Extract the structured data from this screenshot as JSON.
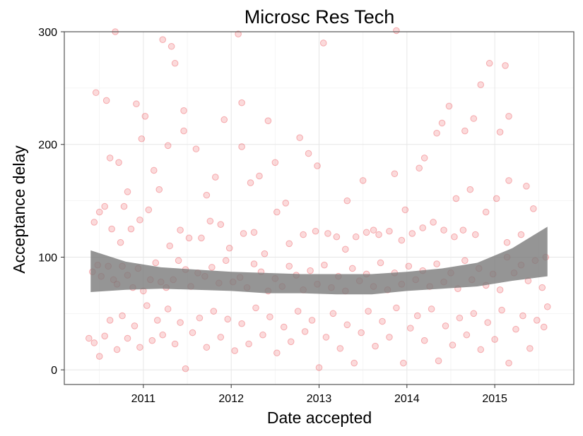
{
  "chart_data": {
    "type": "scatter",
    "title": "Microsc Res Tech",
    "xlabel": "Date accepted",
    "ylabel": "Acceptance delay",
    "xlim": [
      2010.1,
      2015.9
    ],
    "ylim": [
      -13,
      300
    ],
    "x_ticks": [
      2011,
      2012,
      2013,
      2014,
      2015
    ],
    "y_ticks": [
      0,
      100,
      200,
      300
    ],
    "grid": true,
    "point_color": "#e8303a",
    "ribbon_color": "#7a7a7a",
    "smooth_band": {
      "x": [
        2010.4,
        2010.8,
        2011.2,
        2011.6,
        2012.0,
        2012.4,
        2012.8,
        2013.2,
        2013.6,
        2014.0,
        2014.4,
        2014.8,
        2015.2,
        2015.6
      ],
      "lower": [
        69,
        71,
        72,
        71,
        70,
        68,
        68,
        67,
        67,
        70,
        72,
        74,
        79,
        83
      ],
      "upper": [
        106,
        96,
        91,
        89,
        87,
        86,
        85,
        85,
        85,
        87,
        90,
        95,
        108,
        127
      ]
    },
    "series": [
      {
        "points": [
          [
            2010.46,
            246
          ],
          [
            2010.58,
            239
          ],
          [
            2010.62,
            188
          ],
          [
            2010.68,
            300
          ],
          [
            2010.72,
            184
          ],
          [
            2010.78,
            145
          ],
          [
            2010.82,
            158
          ],
          [
            2010.92,
            236
          ],
          [
            2010.98,
            205
          ],
          [
            2011.02,
            225
          ],
          [
            2011.12,
            177
          ],
          [
            2011.22,
            293
          ],
          [
            2011.32,
            287
          ],
          [
            2011.36,
            272
          ],
          [
            2011.28,
            199
          ],
          [
            2011.46,
            230
          ],
          [
            2011.46,
            212
          ],
          [
            2011.6,
            196
          ],
          [
            2011.72,
            155
          ],
          [
            2011.82,
            171
          ],
          [
            2011.92,
            222
          ],
          [
            2012.08,
            298
          ],
          [
            2012.12,
            237
          ],
          [
            2012.12,
            198
          ],
          [
            2012.22,
            166
          ],
          [
            2012.32,
            172
          ],
          [
            2012.42,
            221
          ],
          [
            2012.5,
            184
          ],
          [
            2012.62,
            148
          ],
          [
            2012.78,
            206
          ],
          [
            2012.88,
            192
          ],
          [
            2012.98,
            181
          ],
          [
            2013.05,
            290
          ],
          [
            2013.32,
            150
          ],
          [
            2013.5,
            168
          ],
          [
            2013.62,
            124
          ],
          [
            2013.88,
            301
          ],
          [
            2013.86,
            174
          ],
          [
            2013.98,
            142
          ],
          [
            2014.14,
            179
          ],
          [
            2014.2,
            188
          ],
          [
            2014.34,
            210
          ],
          [
            2014.4,
            219
          ],
          [
            2014.48,
            234
          ],
          [
            2014.56,
            152
          ],
          [
            2014.66,
            212
          ],
          [
            2014.72,
            160
          ],
          [
            2014.76,
            223
          ],
          [
            2014.84,
            253
          ],
          [
            2014.94,
            272
          ],
          [
            2015.06,
            211
          ],
          [
            2015.12,
            270
          ],
          [
            2015.16,
            225
          ],
          [
            2015.16,
            168
          ],
          [
            2015.3,
            120
          ],
          [
            2015.36,
            163
          ],
          [
            2015.44,
            143
          ],
          [
            2010.44,
            131
          ],
          [
            2010.5,
            140
          ],
          [
            2010.56,
            145
          ],
          [
            2010.64,
            125
          ],
          [
            2010.74,
            113
          ],
          [
            2010.86,
            125
          ],
          [
            2010.96,
            133
          ],
          [
            2011.06,
            142
          ],
          [
            2011.18,
            160
          ],
          [
            2011.3,
            110
          ],
          [
            2011.42,
            124
          ],
          [
            2011.52,
            117
          ],
          [
            2011.66,
            117
          ],
          [
            2011.76,
            132
          ],
          [
            2011.88,
            129
          ],
          [
            2011.98,
            108
          ],
          [
            2012.14,
            121
          ],
          [
            2012.26,
            122
          ],
          [
            2012.38,
            103
          ],
          [
            2012.52,
            140
          ],
          [
            2012.66,
            112
          ],
          [
            2012.82,
            120
          ],
          [
            2012.96,
            123
          ],
          [
            2013.1,
            121
          ],
          [
            2013.2,
            118
          ],
          [
            2013.3,
            107
          ],
          [
            2013.42,
            118
          ],
          [
            2013.54,
            122
          ],
          [
            2013.68,
            120
          ],
          [
            2013.8,
            123
          ],
          [
            2013.94,
            115
          ],
          [
            2014.06,
            121
          ],
          [
            2014.18,
            126
          ],
          [
            2014.3,
            131
          ],
          [
            2014.42,
            124
          ],
          [
            2014.54,
            118
          ],
          [
            2014.64,
            124
          ],
          [
            2014.78,
            120
          ],
          [
            2014.9,
            140
          ],
          [
            2015.02,
            152
          ],
          [
            2015.14,
            113
          ]
        ]
      },
      {
        "points": [
          [
            2010.42,
            87
          ],
          [
            2010.48,
            93
          ],
          [
            2010.52,
            83
          ],
          [
            2010.6,
            92
          ],
          [
            2010.66,
            80
          ],
          [
            2010.7,
            76
          ],
          [
            2010.76,
            92
          ],
          [
            2010.82,
            84
          ],
          [
            2010.88,
            73
          ],
          [
            2010.94,
            90
          ],
          [
            2011.0,
            70
          ],
          [
            2011.08,
            80
          ],
          [
            2011.14,
            95
          ],
          [
            2011.2,
            78
          ],
          [
            2011.26,
            73
          ],
          [
            2011.34,
            80
          ],
          [
            2011.4,
            97
          ],
          [
            2011.48,
            89
          ],
          [
            2011.54,
            74
          ],
          [
            2011.62,
            86
          ],
          [
            2011.7,
            83
          ],
          [
            2011.78,
            91
          ],
          [
            2011.86,
            77
          ],
          [
            2011.94,
            97
          ],
          [
            2012.02,
            78
          ],
          [
            2012.1,
            82
          ],
          [
            2012.18,
            73
          ],
          [
            2012.26,
            94
          ],
          [
            2012.34,
            87
          ],
          [
            2012.42,
            70
          ],
          [
            2012.5,
            81
          ],
          [
            2012.58,
            74
          ],
          [
            2012.66,
            92
          ],
          [
            2012.74,
            84
          ],
          [
            2012.82,
            71
          ],
          [
            2012.9,
            88
          ],
          [
            2012.98,
            76
          ],
          [
            2013.06,
            93
          ],
          [
            2013.14,
            73
          ],
          [
            2013.22,
            83
          ],
          [
            2013.3,
            70
          ],
          [
            2013.38,
            90
          ],
          [
            2013.46,
            79
          ],
          [
            2013.54,
            85
          ],
          [
            2013.62,
            74
          ],
          [
            2013.7,
            95
          ],
          [
            2013.78,
            71
          ],
          [
            2013.86,
            86
          ],
          [
            2013.94,
            76
          ],
          [
            2014.02,
            92
          ],
          [
            2014.1,
            80
          ],
          [
            2014.18,
            88
          ],
          [
            2014.26,
            74
          ],
          [
            2014.34,
            94
          ],
          [
            2014.42,
            78
          ],
          [
            2014.5,
            86
          ],
          [
            2014.58,
            72
          ],
          [
            2014.66,
            97
          ],
          [
            2014.74,
            80
          ],
          [
            2014.82,
            90
          ],
          [
            2014.9,
            75
          ],
          [
            2014.98,
            85
          ],
          [
            2015.06,
            71
          ],
          [
            2015.14,
            100
          ],
          [
            2015.22,
            86
          ],
          [
            2015.3,
            93
          ],
          [
            2015.38,
            79
          ],
          [
            2015.46,
            97
          ],
          [
            2015.54,
            73
          ],
          [
            2015.58,
            100
          ]
        ]
      },
      {
        "points": [
          [
            2010.38,
            28
          ],
          [
            2010.44,
            24
          ],
          [
            2010.5,
            12
          ],
          [
            2010.56,
            30
          ],
          [
            2010.62,
            44
          ],
          [
            2010.7,
            18
          ],
          [
            2010.76,
            48
          ],
          [
            2010.82,
            28
          ],
          [
            2010.9,
            39
          ],
          [
            2010.96,
            20
          ],
          [
            2011.04,
            57
          ],
          [
            2011.1,
            26
          ],
          [
            2011.16,
            44
          ],
          [
            2011.22,
            31
          ],
          [
            2011.28,
            54
          ],
          [
            2011.36,
            23
          ],
          [
            2011.42,
            42
          ],
          [
            2011.48,
            1
          ],
          [
            2011.56,
            33
          ],
          [
            2011.64,
            46
          ],
          [
            2011.72,
            20
          ],
          [
            2011.8,
            52
          ],
          [
            2011.88,
            29
          ],
          [
            2011.96,
            45
          ],
          [
            2012.04,
            17
          ],
          [
            2012.12,
            41
          ],
          [
            2012.2,
            23
          ],
          [
            2012.28,
            55
          ],
          [
            2012.36,
            31
          ],
          [
            2012.44,
            47
          ],
          [
            2012.52,
            15
          ],
          [
            2012.6,
            38
          ],
          [
            2012.68,
            25
          ],
          [
            2012.76,
            52
          ],
          [
            2012.84,
            34
          ],
          [
            2012.92,
            44
          ],
          [
            2013.0,
            2
          ],
          [
            2013.08,
            29
          ],
          [
            2013.16,
            50
          ],
          [
            2013.24,
            19
          ],
          [
            2013.32,
            40
          ],
          [
            2013.4,
            6
          ],
          [
            2013.48,
            33
          ],
          [
            2013.56,
            52
          ],
          [
            2013.64,
            21
          ],
          [
            2013.72,
            43
          ],
          [
            2013.8,
            29
          ],
          [
            2013.88,
            55
          ],
          [
            2013.96,
            6
          ],
          [
            2014.04,
            37
          ],
          [
            2014.12,
            48
          ],
          [
            2014.2,
            26
          ],
          [
            2014.28,
            54
          ],
          [
            2014.36,
            8
          ],
          [
            2014.44,
            39
          ],
          [
            2014.52,
            22
          ],
          [
            2014.6,
            46
          ],
          [
            2014.68,
            31
          ],
          [
            2014.76,
            50
          ],
          [
            2014.84,
            18
          ],
          [
            2014.92,
            42
          ],
          [
            2015.0,
            27
          ],
          [
            2015.08,
            53
          ],
          [
            2015.16,
            6
          ],
          [
            2015.24,
            36
          ],
          [
            2015.32,
            48
          ],
          [
            2015.4,
            19
          ],
          [
            2015.48,
            44
          ],
          [
            2015.56,
            38
          ],
          [
            2015.6,
            56
          ]
        ]
      }
    ]
  }
}
